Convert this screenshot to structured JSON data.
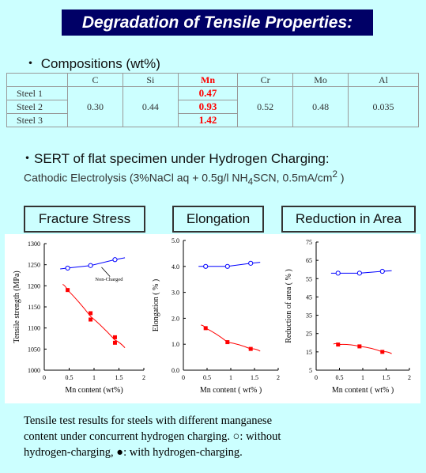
{
  "title": "Degradation of Tensile Properties:",
  "compositions_heading": "・ Compositions (wt%)",
  "table": {
    "headers": [
      "",
      "C",
      "Si",
      "Mn",
      "Cr",
      "Mo",
      "Al"
    ],
    "rows": [
      {
        "name": "Steel 1",
        "Mn": "0.47"
      },
      {
        "name": "Steel 2",
        "Mn": "0.93"
      },
      {
        "name": "Steel 3",
        "Mn": "1.42"
      }
    ],
    "shared": {
      "C": "0.30",
      "Si": "0.44",
      "Cr": "0.52",
      "Mo": "0.48",
      "Al": "0.035"
    }
  },
  "sert_heading": "・SERT of flat specimen under Hydrogen Charging:",
  "cathodic": {
    "prefix": "Cathodic Electrolysis (3%NaCl aq + 0.5g/l NH",
    "sub": "4",
    "middle": "SCN,  0.5mA/cm",
    "sup": "2",
    "suffix": " )"
  },
  "panels": [
    "Fracture Stress",
    "Elongation",
    "Reduction in Area"
  ],
  "chart_data": [
    {
      "type": "line",
      "ylabel": "Tensile strength (MPa)",
      "xlabel": "Mn content (wt%)",
      "xlim": [
        0,
        2
      ],
      "ylim": [
        1000,
        1300
      ],
      "xticks": [
        "0",
        "0.5",
        "1",
        "1.5",
        "2"
      ],
      "yticks": [
        "1000",
        "1050",
        "1100",
        "1150",
        "1200",
        "1250",
        "1300"
      ],
      "annotation": "Non-Charged",
      "series": [
        {
          "marker": "open",
          "color": "#0000ff",
          "x": [
            0.47,
            0.93,
            1.42
          ],
          "y": [
            1242,
            1248,
            1262
          ]
        },
        {
          "marker": "filled",
          "color": "#ff0000",
          "x": [
            0.47,
            0.93,
            0.93,
            1.42,
            1.42
          ],
          "y": [
            1190,
            1135,
            1120,
            1078,
            1065
          ]
        }
      ]
    },
    {
      "type": "line",
      "ylabel": "Elongation ( % )",
      "xlabel": "Mn content ( wt% )",
      "xlim": [
        0,
        2
      ],
      "ylim": [
        0,
        5
      ],
      "xticks": [
        "0",
        "0.5",
        "1",
        "1.5",
        "2"
      ],
      "yticks": [
        "0.0",
        "1.0",
        "2.0",
        "3.0",
        "4.0",
        "5.0"
      ],
      "series": [
        {
          "marker": "open",
          "color": "#0000ff",
          "x": [
            0.47,
            0.93,
            1.42
          ],
          "y": [
            4.0,
            4.0,
            4.12
          ]
        },
        {
          "marker": "filled",
          "color": "#ff0000",
          "x": [
            0.47,
            0.93,
            1.42
          ],
          "y": [
            1.62,
            1.08,
            0.82
          ]
        }
      ]
    },
    {
      "type": "line",
      "ylabel": "Reduction of area ( % )",
      "xlabel": "Mn content ( wt% )",
      "xlim": [
        0,
        2
      ],
      "ylim": [
        5,
        75
      ],
      "xticks": [
        "0",
        "0.5",
        "1",
        "1.5",
        "2"
      ],
      "yticks": [
        "5",
        "15",
        "25",
        "35",
        "45",
        "55",
        "65",
        "75"
      ],
      "series": [
        {
          "marker": "open",
          "color": "#0000ff",
          "x": [
            0.47,
            0.93,
            1.42
          ],
          "y": [
            58,
            58,
            59
          ]
        },
        {
          "marker": "filled",
          "color": "#ff0000",
          "x": [
            0.47,
            0.93,
            1.42
          ],
          "y": [
            19,
            18,
            15
          ]
        }
      ]
    }
  ],
  "caption": {
    "line1": "Tensile test results for steels with different manganese",
    "line2": "content under concurrent hydrogen charging. ○: without",
    "line3": "hydrogen-charging, ●: with hydrogen-charging."
  }
}
